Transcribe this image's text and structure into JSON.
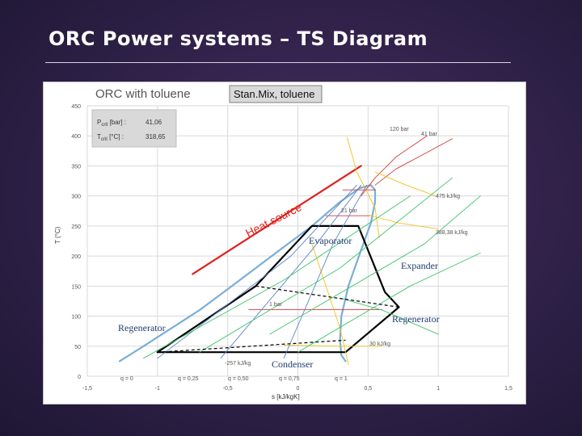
{
  "slide": {
    "title": "ORC Power systems – TS Diagram"
  },
  "chart_data": {
    "type": "line",
    "title": "ORC with toluene",
    "subtitle": "Stan.Mix, toluene",
    "xlabel": "s [kJ/kgK]",
    "ylabel": "T (°C)",
    "xlim": [
      -1.5,
      1.5
    ],
    "ylim": [
      0,
      450
    ],
    "x_ticks": [
      "-1,5",
      "-1",
      "-0,5",
      "0",
      "0,5",
      "1",
      "1,5"
    ],
    "y_ticks": [
      "0",
      "50",
      "100",
      "150",
      "200",
      "250",
      "300",
      "350",
      "400",
      "450"
    ],
    "grid": true,
    "critical_box": {
      "p_label": "P",
      "p_sub": "crit",
      "p_unit": " [bar] :",
      "p_value": "41,06",
      "t_label": "T",
      "t_sub": "crit",
      "t_unit": " [°C] :",
      "t_value": "318,65"
    },
    "components": {
      "evaporator": "Evaporator",
      "expander": "Expander",
      "regenerator_right": "Regenerator",
      "regenerator_left": "Regenerator",
      "condenser": "Condenser",
      "heat_source": "Heat source"
    },
    "labels": {
      "p120": "120 bar",
      "p41": "41 bar",
      "p21": "21 bar",
      "p1": "1 bar",
      "h475": "475 kJ/kg",
      "h388": "388,38 kJ/kg",
      "h30": "30 kJ/kg",
      "hneg": "-257 kJ/kg",
      "q0": "q = 0",
      "q025": "q = 0,25",
      "q050": "q = 0,50",
      "q075": "q = 0,75",
      "q1": "q = 1"
    },
    "colors": {
      "saturation_dome": "#7aaed6",
      "cycle": "#000000",
      "heat_source": "#e0201c",
      "isobar": "#d23b3b",
      "isenthalp": "#f0c419",
      "quality": "#5b86c5",
      "isochore": "#3ec46d",
      "grid": "#d9d9d9"
    },
    "series": [
      {
        "name": "saturation_dome",
        "x": [
          -1.27,
          -1.1,
          -0.9,
          -0.7,
          -0.5,
          -0.3,
          -0.1,
          0.1,
          0.3,
          0.44,
          0.52,
          0.55,
          0.55,
          0.52,
          0.45,
          0.36,
          0.31,
          0.3,
          0.31,
          0.34
        ],
        "y": [
          25,
          50,
          80,
          110,
          145,
          180,
          215,
          250,
          290,
          313,
          318,
          310,
          290,
          255,
          210,
          150,
          100,
          60,
          35,
          25
        ]
      },
      {
        "name": "cycle",
        "x": [
          -1,
          -0.3,
          0.1,
          0.43,
          0.62,
          0.72,
          0.34,
          -1
        ],
        "y": [
          40,
          150,
          250,
          250,
          140,
          115,
          40,
          40
        ]
      },
      {
        "name": "heat_source",
        "x": [
          -0.75,
          0.45
        ],
        "y": [
          170,
          350
        ]
      },
      {
        "name": "isobar_1bar",
        "x": [
          -0.35,
          0.6
        ],
        "y": [
          111,
          111
        ]
      },
      {
        "name": "isobar_21bar",
        "x": [
          0.2,
          0.52
        ],
        "y": [
          267,
          267
        ]
      },
      {
        "name": "isobar_41bar",
        "x": [
          0.32,
          0.55
        ],
        "y": [
          310,
          310
        ]
      },
      {
        "name": "isobar_120bar",
        "x": [
          0.45,
          0.55,
          0.7,
          0.92
        ],
        "y": [
          300,
          330,
          365,
          400
        ]
      },
      {
        "name": "isobar_hi_b",
        "x": [
          0.55,
          0.7,
          0.9,
          1.1
        ],
        "y": [
          318,
          345,
          370,
          395
        ]
      },
      {
        "name": "isenthalp_475",
        "x": [
          0.55,
          0.75,
          0.98
        ],
        "y": [
          340,
          320,
          300
        ]
      },
      {
        "name": "isenthalp_388",
        "x": [
          0.5,
          0.72,
          1.0
        ],
        "y": [
          268,
          255,
          245
        ]
      },
      {
        "name": "isenthalp_30",
        "x": [
          -0.1,
          0.3,
          0.6
        ],
        "y": [
          52,
          50,
          50
        ]
      },
      {
        "name": "isenthalp_curve_a",
        "x": [
          0.1,
          0.2,
          0.3,
          0.36
        ],
        "y": [
          220,
          150,
          80,
          20
        ]
      },
      {
        "name": "isenthalp_curve_b",
        "x": [
          0.35,
          0.42,
          0.55,
          0.58
        ],
        "y": [
          398,
          340,
          280,
          230
        ]
      },
      {
        "name": "quality_025",
        "x": [
          -1.0,
          -0.05,
          0.42
        ],
        "y": [
          30,
          200,
          318
        ]
      },
      {
        "name": "quality_050",
        "x": [
          -0.55,
          0.1,
          0.45
        ],
        "y": [
          30,
          210,
          318
        ]
      },
      {
        "name": "quality_075",
        "x": [
          -0.1,
          0.25,
          0.49
        ],
        "y": [
          30,
          220,
          318
        ]
      },
      {
        "name": "isochore_1",
        "x": [
          -1.1,
          -0.1,
          0.8
        ],
        "y": [
          30,
          160,
          300
        ]
      },
      {
        "name": "isochore_2",
        "x": [
          -0.7,
          0.3,
          1.1
        ],
        "y": [
          40,
          180,
          330
        ]
      },
      {
        "name": "isochore_3",
        "x": [
          -0.2,
          0.9,
          1.3
        ],
        "y": [
          70,
          220,
          300
        ]
      },
      {
        "name": "isochore_4",
        "x": [
          0.0,
          0.8,
          1.3
        ],
        "y": [
          40,
          150,
          205
        ]
      },
      {
        "name": "isochore_5",
        "x": [
          0.3,
          0.6,
          1.0
        ],
        "y": [
          130,
          110,
          70
        ]
      }
    ]
  }
}
